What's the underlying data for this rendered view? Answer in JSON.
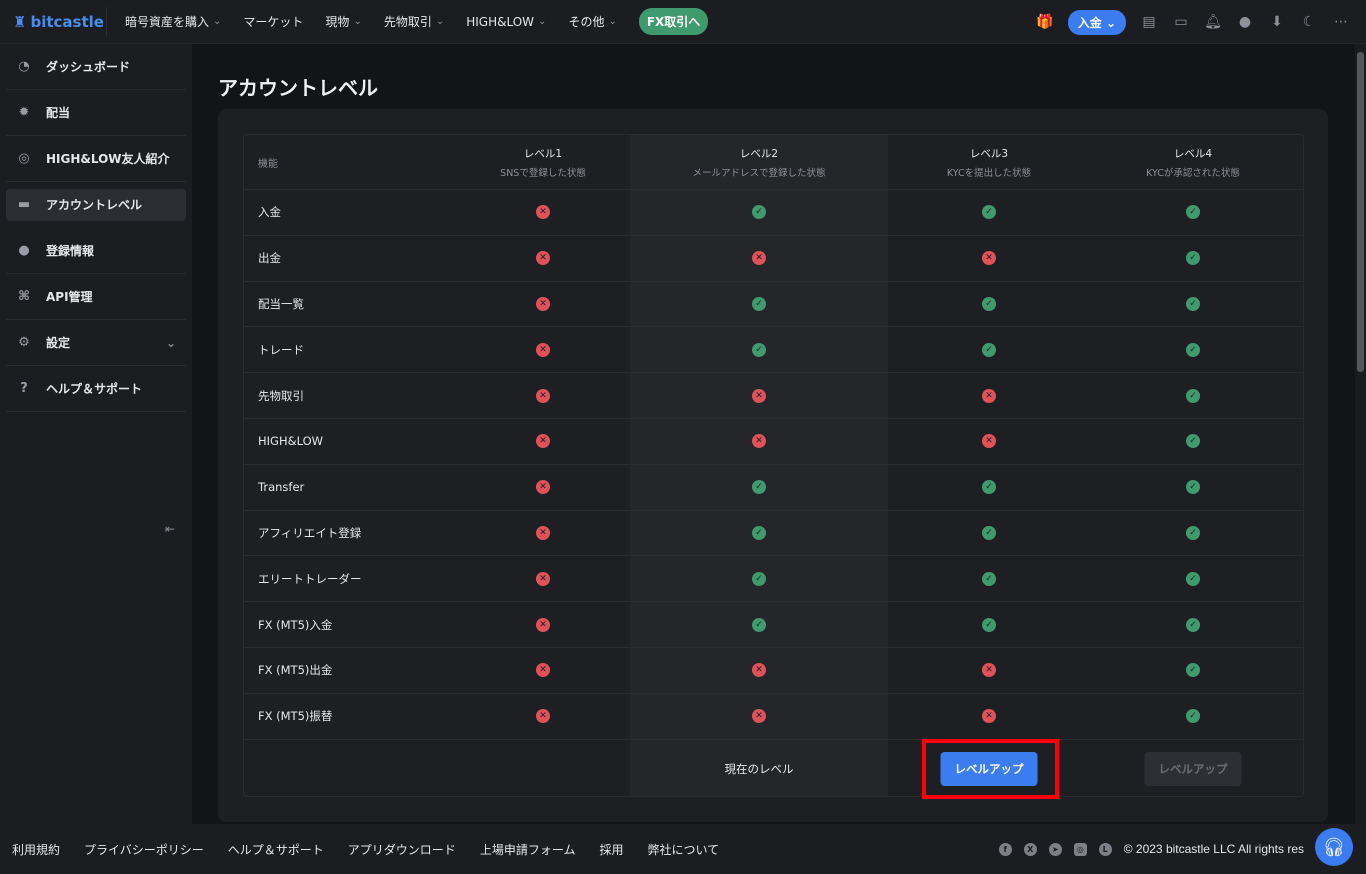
{
  "header": {
    "logo": "bitcastle",
    "nav": [
      {
        "label": "暗号資産を購入",
        "chevron": true
      },
      {
        "label": "マーケット",
        "chevron": false
      },
      {
        "label": "現物",
        "chevron": true
      },
      {
        "label": "先物取引",
        "chevron": true
      },
      {
        "label": "HIGH&LOW",
        "chevron": true
      },
      {
        "label": "その他",
        "chevron": true
      }
    ],
    "fx_button": "FX取引へ",
    "deposit_button": "入金",
    "icons": [
      "gift-icon",
      "notes-icon",
      "wallet-icon",
      "bell-icon",
      "user-icon",
      "download-icon",
      "moon-icon",
      "more-icon"
    ]
  },
  "sidebar": {
    "items": [
      {
        "label": "ダッシュボード",
        "icon": "pie-chart-icon"
      },
      {
        "label": "配当",
        "icon": "medal-icon"
      },
      {
        "label": "HIGH&LOW友人紹介",
        "icon": "referral-icon"
      },
      {
        "label": "アカウントレベル",
        "icon": "id-card-icon",
        "active": true
      },
      {
        "label": "登録情報",
        "icon": "user-icon"
      },
      {
        "label": "API管理",
        "icon": "api-icon"
      },
      {
        "label": "設定",
        "icon": "gear-icon",
        "chevron": true
      },
      {
        "label": "ヘルプ＆サポート",
        "icon": "help-icon"
      }
    ]
  },
  "page": {
    "title": "アカウントレベル"
  },
  "table": {
    "feature_header": "機能",
    "levels": [
      {
        "name": "レベル1",
        "desc": "SNSで登録した状態"
      },
      {
        "name": "レベル2",
        "desc": "メールアドレスで登録した状態"
      },
      {
        "name": "レベル3",
        "desc": "KYCを提出した状態"
      },
      {
        "name": "レベル4",
        "desc": "KYCが承認された状態"
      }
    ],
    "rows": [
      {
        "feature": "入金",
        "values": [
          false,
          true,
          true,
          true
        ]
      },
      {
        "feature": "出金",
        "values": [
          false,
          false,
          false,
          true
        ]
      },
      {
        "feature": "配当一覧",
        "values": [
          false,
          true,
          true,
          true
        ]
      },
      {
        "feature": "トレード",
        "values": [
          false,
          true,
          true,
          true
        ]
      },
      {
        "feature": "先物取引",
        "values": [
          false,
          false,
          false,
          true
        ]
      },
      {
        "feature": "HIGH&LOW",
        "values": [
          false,
          false,
          false,
          true
        ]
      },
      {
        "feature": "Transfer",
        "values": [
          false,
          true,
          true,
          true
        ]
      },
      {
        "feature": "アフィリエイト登録",
        "values": [
          false,
          true,
          true,
          true
        ]
      },
      {
        "feature": "エリートトレーダー",
        "values": [
          false,
          true,
          true,
          true
        ]
      },
      {
        "feature": "FX (MT5)入金",
        "values": [
          false,
          true,
          true,
          true
        ]
      },
      {
        "feature": "FX (MT5)出金",
        "values": [
          false,
          false,
          false,
          true
        ]
      },
      {
        "feature": "FX (MT5)振替",
        "values": [
          false,
          false,
          false,
          true
        ]
      }
    ],
    "current_level_label": "現在のレベル",
    "level_up_label": "レベルアップ",
    "level_up_disabled_label": "レベルアップ"
  },
  "footer": {
    "links": [
      "利用規約",
      "プライバシーポリシー",
      "ヘルプ＆サポート",
      "アプリダウンロード",
      "上場申請フォーム",
      "採用",
      "弊社について"
    ],
    "social": [
      "facebook-icon",
      "x-icon",
      "telegram-icon",
      "instagram-icon",
      "line-icon"
    ],
    "copyright": "© 2023 bitcastle LLC All rights res"
  },
  "colors": {
    "accent": "#3b7cf0",
    "ok": "#3f9a6e",
    "ng": "#e0525a",
    "highlight_box": "#ff0000"
  }
}
